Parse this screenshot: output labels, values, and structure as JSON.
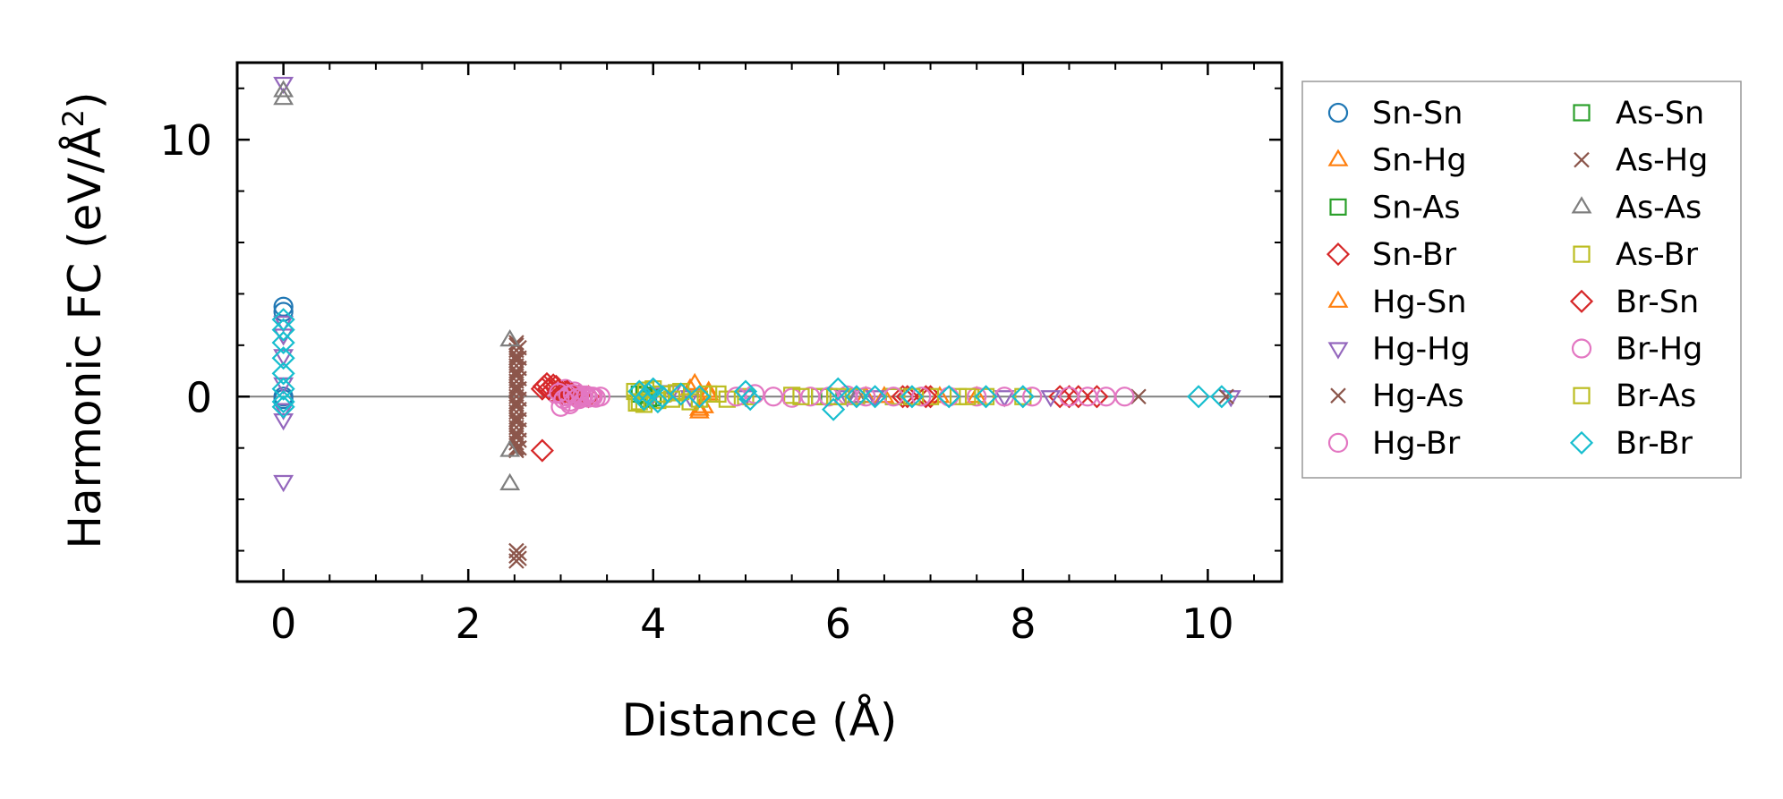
{
  "chart_data": {
    "type": "scatter",
    "title": "",
    "xlabel": "Distance (Å)",
    "ylabel": "Harmonic FC (eV/Å²)",
    "ylabel_parts": {
      "main": "Harmonic FC (eV/Å",
      "sup": "2",
      "close": ")"
    },
    "xlim": [
      -0.5,
      10.8
    ],
    "ylim": [
      -7.2,
      13.0
    ],
    "xticks": [
      0,
      2,
      4,
      6,
      8,
      10
    ],
    "xtick_labels": [
      "0",
      "2",
      "4",
      "6",
      "8",
      "10"
    ],
    "yticks": [
      0,
      10
    ],
    "ytick_labels": [
      "0",
      "10"
    ],
    "grid": false,
    "zero_line": true,
    "legend": {
      "placement": "outside-right",
      "columns": 2
    },
    "series": [
      {
        "name": "Sn-Sn",
        "marker": "circle",
        "color": "#1f77b4",
        "x": [
          0,
          0,
          0,
          0
        ],
        "y": [
          3.5,
          3.3,
          0,
          -0.1
        ]
      },
      {
        "name": "Sn-Hg",
        "marker": "triangle-up",
        "color": "#ff7f0e",
        "x": [
          4.45,
          4.5,
          4.55,
          4.6,
          6.3,
          7.1
        ],
        "y": [
          0.5,
          -0.6,
          -0.4,
          0.2,
          0,
          0
        ]
      },
      {
        "name": "Sn-As",
        "marker": "square",
        "color": "#2ca02c",
        "x": [
          3.85,
          3.95,
          5.9,
          6.6
        ],
        "y": [
          0.1,
          -0.1,
          0,
          0
        ]
      },
      {
        "name": "Sn-Br",
        "marker": "diamond",
        "color": "#d62728",
        "x": [
          2.8,
          2.85,
          2.9,
          2.95,
          3.0,
          3.05,
          3.1,
          3.2,
          3.3,
          2.8,
          6.7,
          7.0,
          8.4,
          8.6,
          8.8
        ],
        "y": [
          0.3,
          0.5,
          0.2,
          0.4,
          0.1,
          0.2,
          0.1,
          0.05,
          0,
          -2.1,
          0,
          0,
          0,
          0,
          0
        ]
      },
      {
        "name": "Hg-Sn",
        "marker": "triangle-up",
        "color": "#ff7f0e",
        "x": [
          4.4,
          4.5,
          4.6,
          6.5,
          7.5
        ],
        "y": [
          0.3,
          -0.5,
          0.1,
          0,
          0
        ]
      },
      {
        "name": "Hg-Hg",
        "marker": "triangle-down",
        "color": "#9467bd",
        "x": [
          0,
          0,
          0,
          0,
          0,
          0,
          0,
          0,
          4.0,
          4.2,
          4.4,
          5.0,
          6.1,
          6.4,
          7.8,
          8.3,
          10.25
        ],
        "y": [
          12.2,
          2.9,
          2.4,
          1.6,
          0.5,
          -0.5,
          -0.9,
          -3.3,
          0.1,
          0.2,
          0,
          0,
          0,
          0,
          0,
          0,
          0
        ]
      },
      {
        "name": "Hg-As",
        "marker": "x",
        "color": "#8c564b",
        "x": [
          2.52,
          2.52,
          2.52,
          2.52,
          2.52,
          2.52,
          2.52,
          2.52,
          2.52,
          2.52,
          2.52,
          2.52,
          2.52,
          2.52,
          2.52,
          2.52,
          2.52,
          2.52,
          2.52,
          2.52,
          2.52,
          2.52,
          2.52,
          2.52,
          2.52,
          2.52,
          2.52,
          2.52,
          2.52,
          2.52,
          2.52,
          2.52,
          9.25,
          10.2
        ],
        "y": [
          2.0,
          1.8,
          1.6,
          1.4,
          1.2,
          1.0,
          0.8,
          0.6,
          0.4,
          0.2,
          0.0,
          -0.2,
          -0.4,
          -0.6,
          -0.8,
          -1.0,
          -1.2,
          -1.4,
          -1.6,
          -1.8,
          -2.0,
          -6.0,
          -6.2,
          -6.4,
          1.5,
          0.9,
          0.3,
          -0.3,
          -0.9,
          -1.5,
          2.1,
          -2.1,
          0,
          0
        ]
      },
      {
        "name": "Hg-Br",
        "marker": "circle",
        "color": "#e377c2",
        "x": [
          2.95,
          3.0,
          3.05,
          3.1,
          3.15,
          3.2,
          3.25,
          3.3,
          3.35,
          3.0,
          3.05,
          3.1,
          3.15,
          3.2
        ],
        "y": [
          0.1,
          0.2,
          0.0,
          -0.2,
          0.1,
          0.0,
          0.05,
          -0.05,
          0.0,
          -0.4,
          0.3,
          -0.3,
          0.2,
          -0.1
        ]
      },
      {
        "name": "As-Sn",
        "marker": "square",
        "color": "#2ca02c",
        "x": [
          3.9,
          4.0,
          5.8
        ],
        "y": [
          0.05,
          -0.05,
          0
        ]
      },
      {
        "name": "As-Hg",
        "marker": "x",
        "color": "#8c564b",
        "x": [
          2.55,
          2.55,
          2.55,
          2.55,
          2.55,
          2.55,
          2.55,
          2.55,
          2.55,
          2.55,
          2.55,
          2.55,
          2.55
        ],
        "y": [
          1.9,
          1.5,
          1.1,
          0.7,
          0.3,
          -0.1,
          -0.5,
          -0.9,
          -1.3,
          -1.7,
          -2.0,
          -6.1,
          -6.3
        ]
      },
      {
        "name": "As-As",
        "marker": "triangle-up",
        "color": "#7f7f7f",
        "x": [
          0,
          0,
          2.45,
          2.45,
          2.45,
          6.2
        ],
        "y": [
          11.6,
          11.9,
          2.2,
          -2.1,
          -3.4,
          0
        ]
      },
      {
        "name": "As-Br",
        "marker": "square",
        "color": "#bcbd22",
        "x": [
          3.8,
          3.85,
          3.9,
          4.0,
          4.1,
          4.2,
          4.3,
          4.4,
          4.6,
          4.8,
          5.0,
          5.5,
          5.8,
          6.2,
          6.6,
          7.0,
          7.3,
          7.6,
          8.0
        ],
        "y": [
          0.2,
          -0.2,
          -0.3,
          0.3,
          0.1,
          -0.1,
          0.2,
          -0.2,
          0.1,
          -0.1,
          0,
          0.05,
          0,
          0,
          0,
          0,
          0,
          0,
          0
        ]
      },
      {
        "name": "Br-Sn",
        "marker": "diamond",
        "color": "#d62728",
        "x": [
          2.82,
          2.87,
          2.92,
          2.97,
          3.02,
          3.07,
          3.12,
          6.75,
          6.95,
          8.5
        ],
        "y": [
          0.4,
          0.3,
          0.45,
          0.25,
          0.15,
          0.2,
          0.1,
          0,
          0,
          0
        ]
      },
      {
        "name": "Br-Hg",
        "marker": "circle",
        "color": "#e377c2",
        "x": [
          2.98,
          3.03,
          3.08,
          3.13,
          3.18,
          3.23,
          3.28,
          3.33,
          3.38,
          3.43,
          4.9,
          5.1,
          5.3,
          5.5,
          5.7,
          5.9,
          6.1,
          6.3,
          6.6,
          6.9,
          7.2,
          7.5,
          7.8,
          8.1,
          8.5,
          8.7,
          8.9,
          9.1
        ],
        "y": [
          0.15,
          -0.1,
          0.05,
          0.1,
          -0.05,
          0.0,
          0.05,
          0.0,
          -0.05,
          0.0,
          0,
          0.1,
          0,
          -0.05,
          0,
          0,
          0.05,
          0,
          0,
          0,
          0,
          0,
          0,
          0,
          0,
          0,
          0,
          0
        ]
      },
      {
        "name": "Br-As",
        "marker": "square",
        "color": "#bcbd22",
        "x": [
          3.82,
          3.92,
          4.05,
          4.25,
          4.5,
          4.7,
          5.6,
          6.0,
          6.8,
          7.4
        ],
        "y": [
          -0.25,
          0.25,
          -0.15,
          0.15,
          -0.1,
          0.1,
          0,
          0,
          0,
          0
        ]
      },
      {
        "name": "Br-Br",
        "marker": "diamond",
        "color": "#17becf",
        "x": [
          0,
          0,
          0,
          0,
          0,
          0,
          0,
          0,
          3.85,
          3.9,
          3.95,
          4.0,
          4.05,
          4.1,
          4.3,
          4.5,
          5.0,
          5.05,
          5.95,
          6.0,
          6.2,
          6.4,
          6.8,
          7.2,
          7.6,
          8.0,
          9.9,
          10.15
        ],
        "y": [
          3.0,
          2.6,
          2.1,
          1.5,
          0.9,
          0.3,
          -0.2,
          -0.4,
          0.2,
          -0.1,
          0.1,
          0.3,
          -0.2,
          0.0,
          0.1,
          0.0,
          0.2,
          -0.1,
          -0.5,
          0.3,
          0,
          0,
          0,
          0,
          0,
          0,
          0,
          0
        ]
      }
    ]
  }
}
